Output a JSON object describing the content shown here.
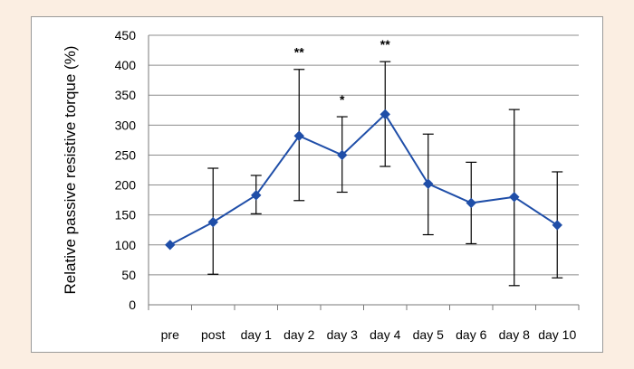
{
  "chart_data": {
    "type": "line",
    "title": "",
    "xlabel": "",
    "ylabel": "Relative passive resistive torque (%)",
    "ylim": [
      0,
      450
    ],
    "yticks": [
      0,
      50,
      100,
      150,
      200,
      250,
      300,
      350,
      400,
      450
    ],
    "grid": true,
    "categories": [
      "pre",
      "post",
      "day 1",
      "day 2",
      "day 3",
      "day 4",
      "day 5",
      "day 6",
      "day 8",
      "day 10"
    ],
    "series": [
      {
        "values": [
          100,
          138,
          183,
          282,
          250,
          318,
          202,
          170,
          180,
          133
        ],
        "error_upper": [
          100,
          228,
          216,
          393,
          314,
          406,
          285,
          238,
          326,
          222
        ],
        "error_lower": [
          100,
          51,
          152,
          174,
          188,
          231,
          117,
          102,
          32,
          45
        ],
        "color": "#1f4ea8"
      }
    ],
    "annotations": [
      {
        "category": "day 2",
        "text": "**"
      },
      {
        "category": "day 3",
        "text": "*"
      },
      {
        "category": "day 4",
        "text": "**"
      }
    ]
  }
}
